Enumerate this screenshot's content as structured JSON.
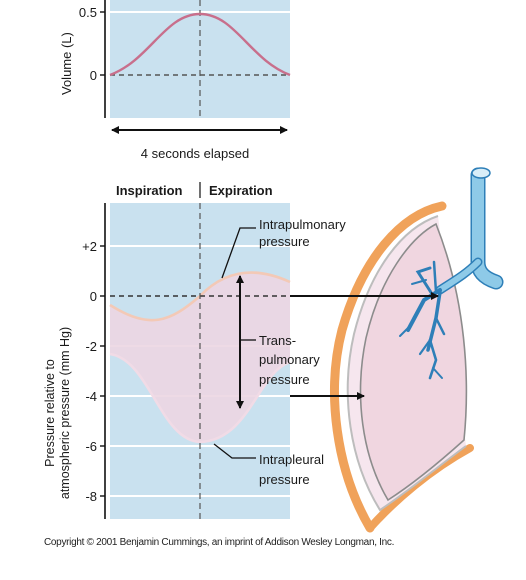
{
  "top_chart": {
    "ylabel": "Volume (L)",
    "ticks": [
      "0.5",
      "0"
    ],
    "elapsed_label": "4 seconds elapsed"
  },
  "bottom_chart": {
    "phase_labels": [
      "Inspiration",
      "Expiration"
    ],
    "ylabel_line1": "Pressure relative to",
    "ylabel_line2": "atmospheric pressure (mm Hg)",
    "ticks": [
      "+2",
      "0",
      "-2",
      "-4",
      "-6",
      "-8"
    ]
  },
  "annotations": {
    "intrapulmonary_1": "Intrapulmonary",
    "intrapulmonary_2": "pressure",
    "trans_1": "Trans-",
    "trans_2": "pulmonary",
    "trans_3": "pressure",
    "intrapleural_1": "Intrapleural",
    "intrapleural_2": "pressure"
  },
  "colors": {
    "panel_bg": "#c9e1ef",
    "curve": "#c86f8c",
    "band": "#ecd6e2",
    "lung_fill": "#f0d6e0",
    "wall": "#f0a25a",
    "airway": "#8ecae8"
  },
  "copyright": "Copyright © 2001 Benjamin Cummings, an imprint of Addison Wesley Longman, Inc."
}
